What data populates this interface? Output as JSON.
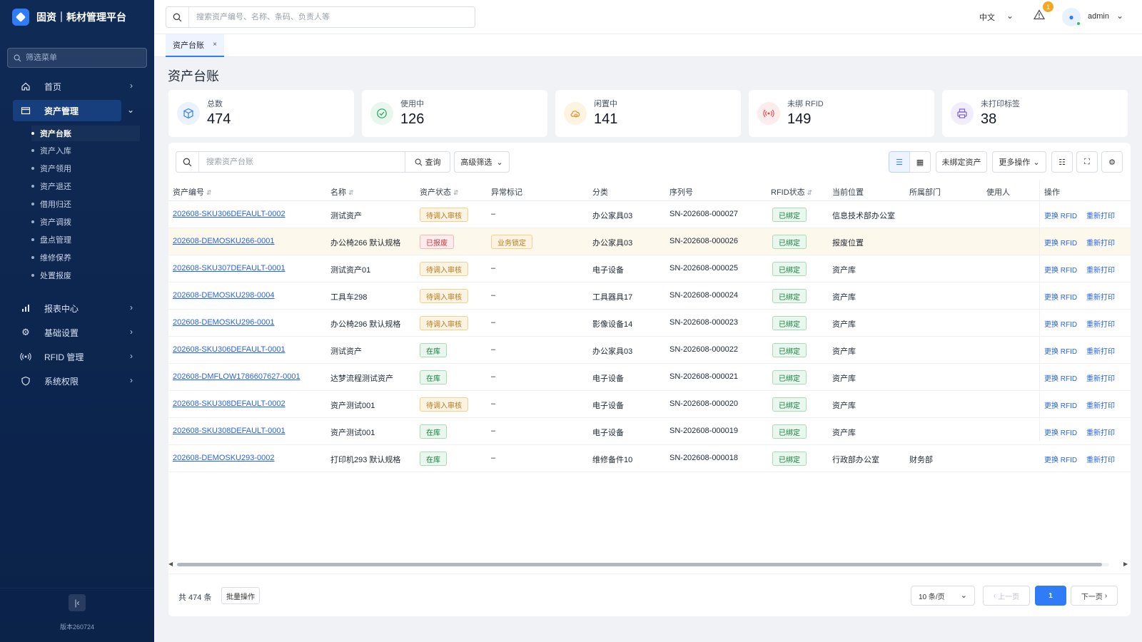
{
  "app": {
    "title": "固资｜耗材管理平台",
    "version": "版本260724"
  },
  "sidebar": {
    "filter_placeholder": "筛选菜单",
    "items": [
      {
        "label": "首页",
        "icon": "home-icon"
      },
      {
        "label": "资产管理",
        "icon": "folder-icon"
      },
      {
        "label": "报表中心",
        "icon": "bar-chart-icon"
      },
      {
        "label": "基础设置",
        "icon": "gear-icon"
      },
      {
        "label": "RFID 管理",
        "icon": "rfid-signal-icon"
      },
      {
        "label": "系统权限",
        "icon": "shield-icon"
      }
    ],
    "sub_items": [
      "资产台账",
      "资产入库",
      "资产领用",
      "资产退还",
      "借用归还",
      "资产调拨",
      "盘点管理",
      "维修保养",
      "处置报废"
    ]
  },
  "topbar": {
    "search_placeholder": "搜索资产编号、名称、条码、负责人等",
    "language": "中文",
    "alert_count": "1",
    "username": "admin"
  },
  "tabs": [
    {
      "label": "资产台账",
      "close": "×"
    }
  ],
  "page": {
    "title": "资产台账"
  },
  "stats": [
    {
      "label": "总数",
      "value": "474",
      "icon": "box-icon",
      "color": "#2f7cf6",
      "bg": "#eaf2fe"
    },
    {
      "label": "使用中",
      "value": "126",
      "icon": "check-circle-icon",
      "color": "#22a35a",
      "bg": "#e8f7ee"
    },
    {
      "label": "闲置中",
      "value": "141",
      "icon": "idle-icon",
      "color": "#e0922b",
      "bg": "#fdf3e1"
    },
    {
      "label": "未绑 RFID",
      "value": "149",
      "icon": "rfid-signal-icon",
      "color": "#e5484d",
      "bg": "#fdecec"
    },
    {
      "label": "未打印标签",
      "value": "38",
      "icon": "printer-icon",
      "color": "#7c5cd6",
      "bg": "#f1edfc"
    }
  ],
  "toolbar": {
    "search_placeholder": "搜索资产台账",
    "query_label": "查询",
    "advanced_filter": "高级筛选",
    "unbound_assets": "未绑定资产",
    "more_actions": "更多操作"
  },
  "table": {
    "columns": [
      "资产编号",
      "名称",
      "资产状态",
      "异常标记",
      "分类",
      "序列号",
      "RFID状态",
      "当前位置",
      "所属部门",
      "使用人",
      "操作"
    ],
    "sort_glyph": "⇵",
    "op_replace": "更换 RFID",
    "op_reprint": "重新打印",
    "rows": [
      {
        "code": "202608-SKU306DEFAULT-0002",
        "name": "测试资产",
        "status": "待调入审核",
        "status_type": "pending",
        "flag": "–",
        "category": "办公家具03",
        "serial": "SN-202608-000027",
        "rfid": "已绑定",
        "location": "信息技术部办公室",
        "dept": "",
        "user": ""
      },
      {
        "code": "202608-DEMOSKU266-0001",
        "name": "办公椅266 默认规格",
        "status": "已报废",
        "status_type": "scrap",
        "flag": "业务锁定",
        "category": "办公家具03",
        "serial": "SN-202608-000026",
        "rfid": "已绑定",
        "location": "报废位置",
        "dept": "",
        "user": ""
      },
      {
        "code": "202608-SKU307DEFAULT-0001",
        "name": "测试资产01",
        "status": "待调入审核",
        "status_type": "pending",
        "flag": "–",
        "category": "电子设备",
        "serial": "SN-202608-000025",
        "rfid": "已绑定",
        "location": "资产库",
        "dept": "",
        "user": ""
      },
      {
        "code": "202608-DEMOSKU298-0004",
        "name": "工具车298",
        "status": "待调入审核",
        "status_type": "pending",
        "flag": "–",
        "category": "工具器具17",
        "serial": "SN-202608-000024",
        "rfid": "已绑定",
        "location": "资产库",
        "dept": "",
        "user": ""
      },
      {
        "code": "202608-DEMOSKU296-0001",
        "name": "办公椅296 默认规格",
        "status": "待调入审核",
        "status_type": "pending",
        "flag": "–",
        "category": "影像设备14",
        "serial": "SN-202608-000023",
        "rfid": "已绑定",
        "location": "资产库",
        "dept": "",
        "user": ""
      },
      {
        "code": "202608-SKU306DEFAULT-0001",
        "name": "测试资产",
        "status": "在库",
        "status_type": "instock",
        "flag": "–",
        "category": "办公家具03",
        "serial": "SN-202608-000022",
        "rfid": "已绑定",
        "location": "资产库",
        "dept": "",
        "user": ""
      },
      {
        "code": "202608-DMFLOW1786607627-0001",
        "name": "达梦流程测试资产",
        "status": "在库",
        "status_type": "instock",
        "flag": "–",
        "category": "电子设备",
        "serial": "SN-202608-000021",
        "rfid": "已绑定",
        "location": "资产库",
        "dept": "",
        "user": ""
      },
      {
        "code": "202608-SKU308DEFAULT-0002",
        "name": "资产测试001",
        "status": "待调入审核",
        "status_type": "pending",
        "flag": "–",
        "category": "电子设备",
        "serial": "SN-202608-000020",
        "rfid": "已绑定",
        "location": "资产库",
        "dept": "",
        "user": ""
      },
      {
        "code": "202608-SKU308DEFAULT-0001",
        "name": "资产测试001",
        "status": "在库",
        "status_type": "instock",
        "flag": "–",
        "category": "电子设备",
        "serial": "SN-202608-000019",
        "rfid": "已绑定",
        "location": "资产库",
        "dept": "",
        "user": ""
      },
      {
        "code": "202608-DEMOSKU293-0002",
        "name": "打印机293 默认规格",
        "status": "在库",
        "status_type": "instock",
        "flag": "–",
        "category": "维修备件10",
        "serial": "SN-202608-000018",
        "rfid": "已绑定",
        "location": "行政部办公室",
        "dept": "财务部",
        "user": ""
      }
    ]
  },
  "footer": {
    "total": "共 474 条",
    "batch": "批量操作",
    "page_size": "10 条/页",
    "prev": "上一页",
    "current_page": "1",
    "next": "下一页"
  },
  "colors": {
    "accent": "#2f7cf6",
    "sidebar_bg": "#0f2a55",
    "link": "#2563eb"
  }
}
